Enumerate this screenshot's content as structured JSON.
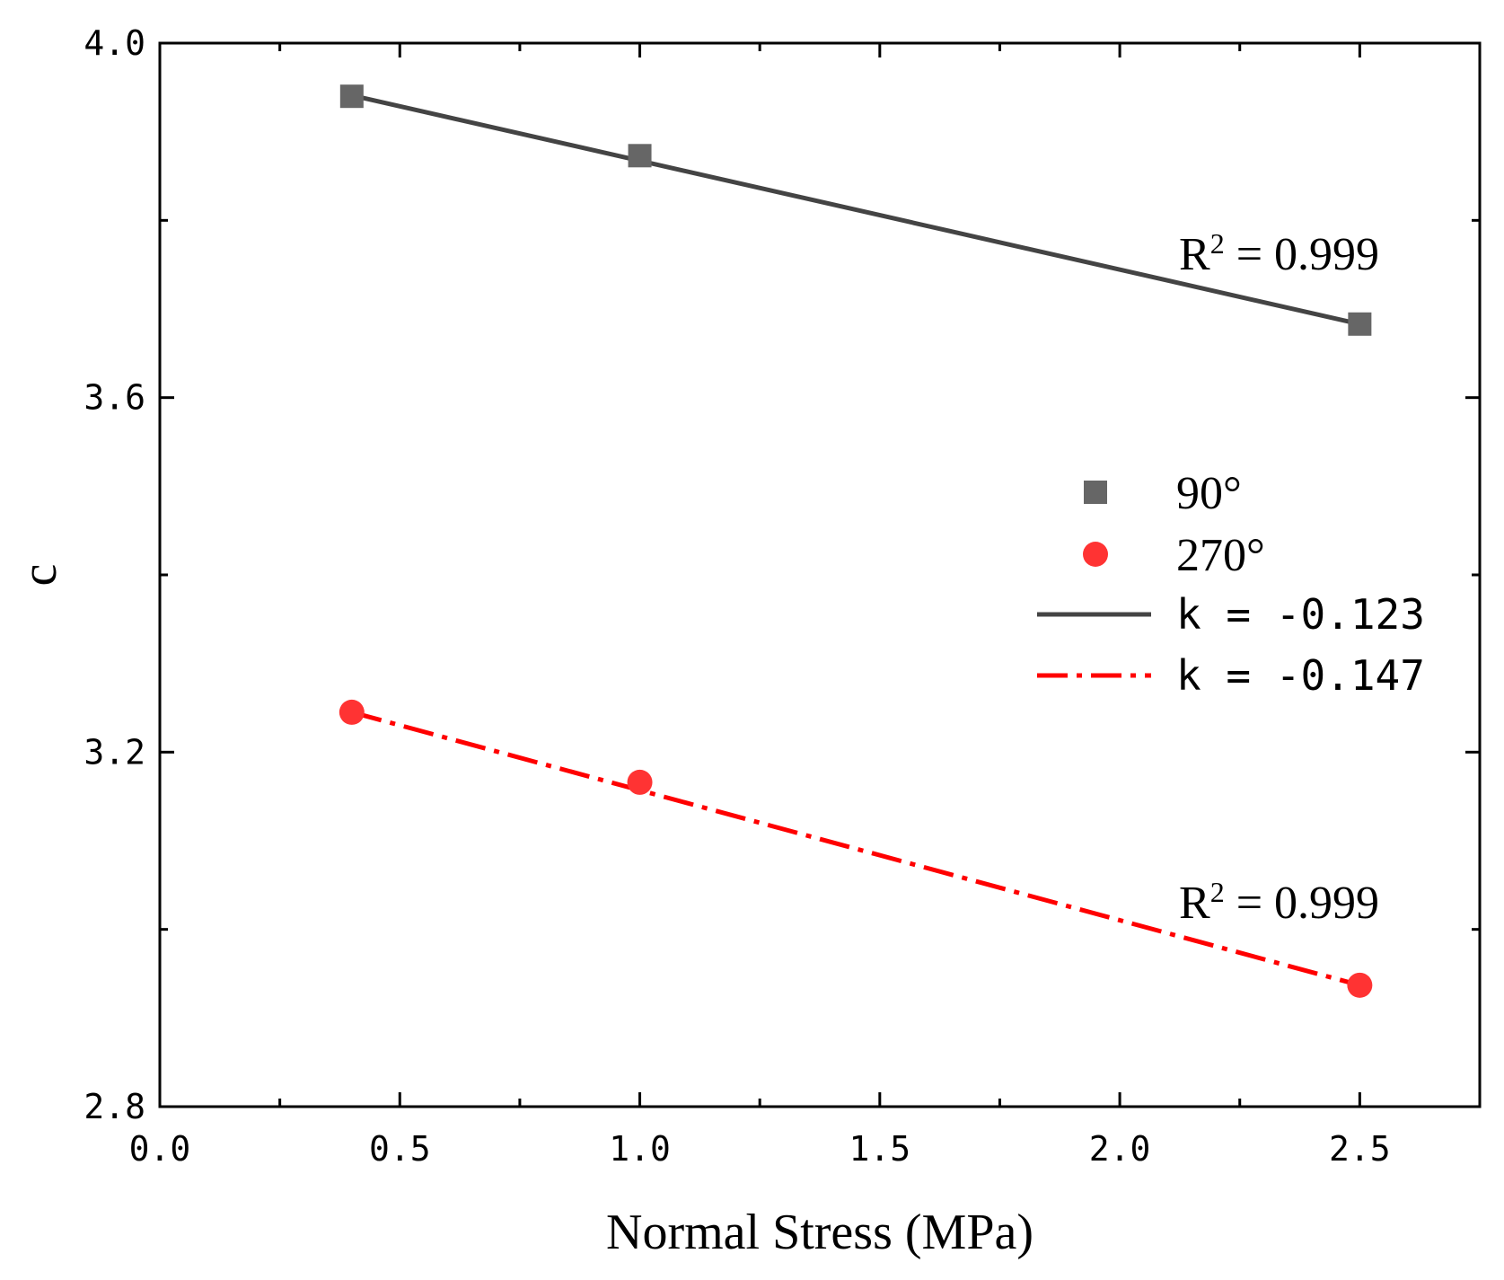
{
  "chart_data": {
    "type": "scatter",
    "title": "",
    "xlabel": "Normal Stress (MPa)",
    "ylabel": "c",
    "xlim": [
      0.0,
      2.75
    ],
    "ylim": [
      2.8,
      4.0
    ],
    "xticks": [
      0.0,
      0.5,
      1.0,
      1.5,
      2.0,
      2.5
    ],
    "xtick_labels": [
      "0.0",
      "0.5",
      "1.0",
      "1.5",
      "2.0",
      "2.5"
    ],
    "yticks": [
      2.8,
      3.2,
      3.6,
      4.0
    ],
    "ytick_labels": [
      "2.8",
      "3.2",
      "3.6",
      "4.0"
    ],
    "grid": false,
    "legend_position": "right",
    "series": [
      {
        "name": "90°",
        "marker": "square",
        "color": "#666666",
        "x": [
          0.4,
          1.0,
          2.5
        ],
        "y": [
          3.94,
          3.873,
          3.683
        ]
      },
      {
        "name": "270°",
        "marker": "circle",
        "color": "#ff3333",
        "x": [
          0.4,
          1.0,
          2.5
        ],
        "y": [
          3.245,
          3.166,
          2.937
        ]
      }
    ],
    "fits": [
      {
        "name": "k = -0.123",
        "style": "solid",
        "color": "#444444",
        "x": [
          0.4,
          2.5
        ],
        "y": [
          3.941,
          3.683
        ],
        "r2_label": "R",
        "r2_sup": "2",
        "r2_value": " = 0.999"
      },
      {
        "name": "k = -0.147",
        "style": "dashdot",
        "color": "#ff0000",
        "x": [
          0.4,
          2.5
        ],
        "y": [
          3.245,
          2.937
        ],
        "r2_label": "R",
        "r2_sup": "2",
        "r2_value": " = 0.999"
      }
    ]
  }
}
